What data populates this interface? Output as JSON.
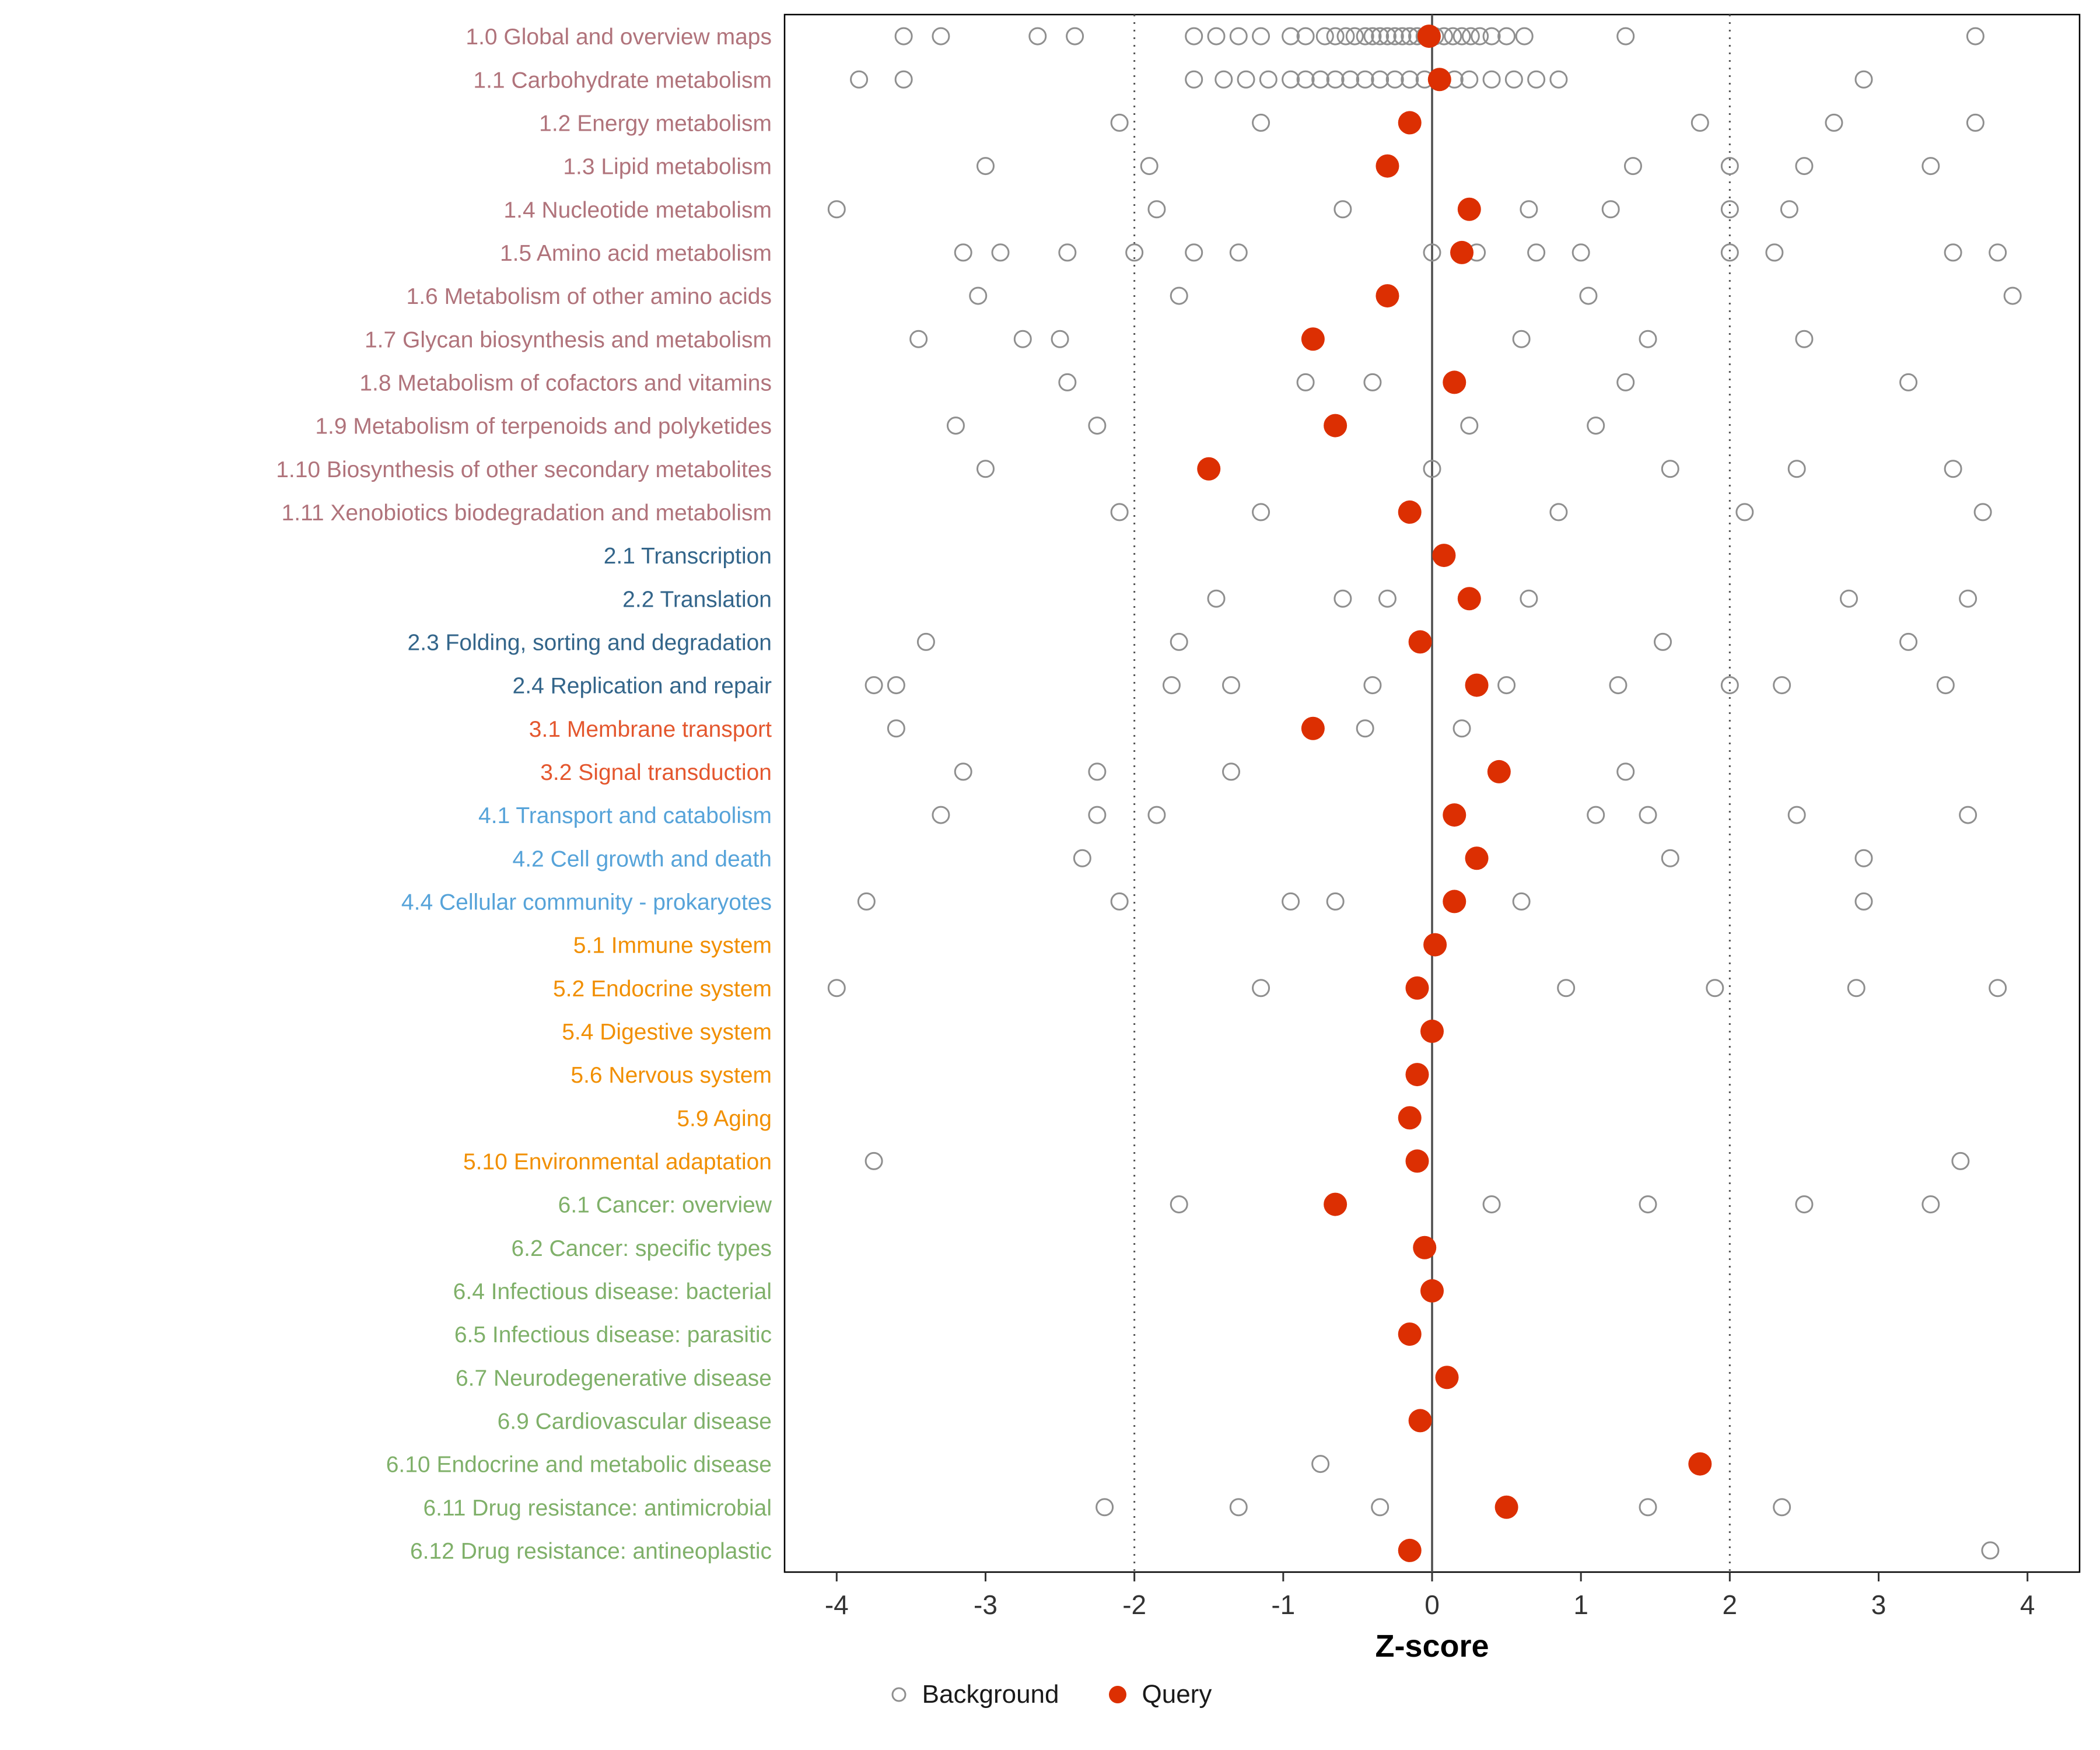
{
  "chart_data": {
    "type": "scatter",
    "title": "",
    "xlabel": "Z-score",
    "ylabel": "",
    "xlim": [
      -4.35,
      4.35
    ],
    "x_ticks": [
      -4,
      -3,
      -2,
      -1,
      0,
      1,
      2,
      3,
      4
    ],
    "grid": false,
    "legend_position": "bottom",
    "reference_lines": {
      "solid": [
        0
      ],
      "dotted": [
        -2,
        2
      ]
    },
    "colors": {
      "query": "#dc2f02",
      "background_stroke": "#8f8f8f",
      "axis_text": "#333333",
      "zero_line": "#4d4d4d",
      "dotted_line": "#555555",
      "panel_border": "#000000",
      "groups": {
        "1": "#b0737b",
        "2": "#33658a",
        "3": "#e4572e",
        "4": "#56a3d9",
        "5": "#f18f01",
        "6": "#7fb069"
      }
    },
    "rows": [
      {
        "label": "1.0 Global and overview maps",
        "group": "1",
        "query": -0.02,
        "background": [
          -3.55,
          -3.3,
          -2.65,
          -2.4,
          -1.6,
          -1.45,
          -1.3,
          -1.15,
          -0.95,
          -0.85,
          -0.72,
          -0.65,
          -0.58,
          -0.52,
          -0.45,
          -0.4,
          -0.35,
          -0.3,
          -0.25,
          -0.2,
          -0.15,
          -0.1,
          -0.05,
          0.02,
          0.08,
          0.14,
          0.2,
          0.26,
          0.32,
          0.4,
          0.5,
          0.62,
          1.3,
          3.65
        ]
      },
      {
        "label": "1.1 Carbohydrate metabolism",
        "group": "1",
        "query": 0.05,
        "background": [
          -3.85,
          -3.55,
          -1.6,
          -1.4,
          -1.25,
          -1.1,
          -0.95,
          -0.85,
          -0.75,
          -0.65,
          -0.55,
          -0.45,
          -0.35,
          -0.25,
          -0.15,
          -0.05,
          0.15,
          0.25,
          0.4,
          0.55,
          0.7,
          0.85,
          2.9
        ]
      },
      {
        "label": "1.2 Energy metabolism",
        "group": "1",
        "query": -0.15,
        "background": [
          -2.1,
          -1.15,
          1.8,
          2.7,
          3.65
        ]
      },
      {
        "label": "1.3 Lipid metabolism",
        "group": "1",
        "query": -0.3,
        "background": [
          -3.0,
          -1.9,
          1.35,
          2.0,
          2.5,
          3.35
        ]
      },
      {
        "label": "1.4 Nucleotide metabolism",
        "group": "1",
        "query": 0.25,
        "background": [
          -4.0,
          -1.85,
          -0.6,
          0.65,
          1.2,
          2.0,
          2.4
        ]
      },
      {
        "label": "1.5 Amino acid metabolism",
        "group": "1",
        "query": 0.2,
        "background": [
          -3.15,
          -2.9,
          -2.45,
          -2.0,
          -1.6,
          -1.3,
          0.0,
          0.3,
          0.7,
          1.0,
          2.0,
          2.3,
          3.5,
          3.8
        ]
      },
      {
        "label": "1.6 Metabolism of other amino acids",
        "group": "1",
        "query": -0.3,
        "background": [
          -3.05,
          -1.7,
          1.05,
          3.9
        ]
      },
      {
        "label": "1.7 Glycan biosynthesis and metabolism",
        "group": "1",
        "query": -0.8,
        "background": [
          -3.45,
          -2.75,
          -2.5,
          0.6,
          1.45,
          2.5
        ]
      },
      {
        "label": "1.8 Metabolism of cofactors and vitamins",
        "group": "1",
        "query": 0.15,
        "background": [
          -2.45,
          -0.85,
          -0.4,
          1.3,
          3.2
        ]
      },
      {
        "label": "1.9 Metabolism of terpenoids and polyketides",
        "group": "1",
        "query": -0.65,
        "background": [
          -3.2,
          -2.25,
          0.25,
          1.1
        ]
      },
      {
        "label": "1.10 Biosynthesis of other secondary metabolites",
        "group": "1",
        "query": -1.5,
        "background": [
          -3.0,
          0.0,
          1.6,
          2.45,
          3.5
        ]
      },
      {
        "label": "1.11 Xenobiotics biodegradation and metabolism",
        "group": "1",
        "query": -0.15,
        "background": [
          -2.1,
          -1.15,
          0.85,
          2.1,
          3.7
        ]
      },
      {
        "label": "2.1 Transcription",
        "group": "2",
        "query": 0.08,
        "background": []
      },
      {
        "label": "2.2 Translation",
        "group": "2",
        "query": 0.25,
        "background": [
          -1.45,
          -0.6,
          -0.3,
          0.65,
          2.8,
          3.6
        ]
      },
      {
        "label": "2.3 Folding, sorting and degradation",
        "group": "2",
        "query": -0.08,
        "background": [
          -3.4,
          -1.7,
          1.55,
          3.2
        ]
      },
      {
        "label": "2.4 Replication and repair",
        "group": "2",
        "query": 0.3,
        "background": [
          -3.75,
          -3.6,
          -1.75,
          -1.35,
          -0.4,
          0.5,
          1.25,
          2.0,
          2.35,
          3.45
        ]
      },
      {
        "label": "3.1 Membrane transport",
        "group": "3",
        "query": -0.8,
        "background": [
          -3.6,
          -0.45,
          0.2
        ]
      },
      {
        "label": "3.2 Signal transduction",
        "group": "3",
        "query": 0.45,
        "background": [
          -3.15,
          -2.25,
          -1.35,
          1.3
        ]
      },
      {
        "label": "4.1 Transport and catabolism",
        "group": "4",
        "query": 0.15,
        "background": [
          -3.3,
          -2.25,
          -1.85,
          1.1,
          1.45,
          2.45,
          3.6
        ]
      },
      {
        "label": "4.2 Cell growth and death",
        "group": "4",
        "query": 0.3,
        "background": [
          -2.35,
          1.6,
          2.9
        ]
      },
      {
        "label": "4.4 Cellular community - prokaryotes",
        "group": "4",
        "query": 0.15,
        "background": [
          -3.8,
          -2.1,
          -0.95,
          -0.65,
          0.6,
          2.9
        ]
      },
      {
        "label": "5.1 Immune system",
        "group": "5",
        "query": 0.02,
        "background": []
      },
      {
        "label": "5.2 Endocrine system",
        "group": "5",
        "query": -0.1,
        "background": [
          -4.0,
          -1.15,
          0.9,
          1.9,
          2.85,
          3.8
        ]
      },
      {
        "label": "5.4 Digestive system",
        "group": "5",
        "query": 0.0,
        "background": []
      },
      {
        "label": "5.6 Nervous system",
        "group": "5",
        "query": -0.1,
        "background": []
      },
      {
        "label": "5.9 Aging",
        "group": "5",
        "query": -0.15,
        "background": []
      },
      {
        "label": "5.10 Environmental adaptation",
        "group": "5",
        "query": -0.1,
        "background": [
          -3.75,
          3.55
        ]
      },
      {
        "label": "6.1 Cancer: overview",
        "group": "6",
        "query": -0.65,
        "background": [
          -1.7,
          0.4,
          1.45,
          2.5,
          3.35
        ]
      },
      {
        "label": "6.2 Cancer: specific types",
        "group": "6",
        "query": -0.05,
        "background": []
      },
      {
        "label": "6.4 Infectious disease: bacterial",
        "group": "6",
        "query": 0.0,
        "background": []
      },
      {
        "label": "6.5 Infectious disease: parasitic",
        "group": "6",
        "query": -0.15,
        "background": []
      },
      {
        "label": "6.7 Neurodegenerative disease",
        "group": "6",
        "query": 0.1,
        "background": []
      },
      {
        "label": "6.9 Cardiovascular disease",
        "group": "6",
        "query": -0.08,
        "background": []
      },
      {
        "label": "6.10 Endocrine and metabolic disease",
        "group": "6",
        "query": 1.8,
        "background": [
          -0.75
        ]
      },
      {
        "label": "6.11 Drug resistance: antimicrobial",
        "group": "6",
        "query": 0.5,
        "background": [
          -2.2,
          -1.3,
          -0.35,
          1.45,
          2.35
        ]
      },
      {
        "label": "6.12 Drug resistance: antineoplastic",
        "group": "6",
        "query": -0.15,
        "background": [
          3.75
        ]
      }
    ]
  },
  "legend": {
    "background_label": "Background",
    "query_label": "Query"
  }
}
